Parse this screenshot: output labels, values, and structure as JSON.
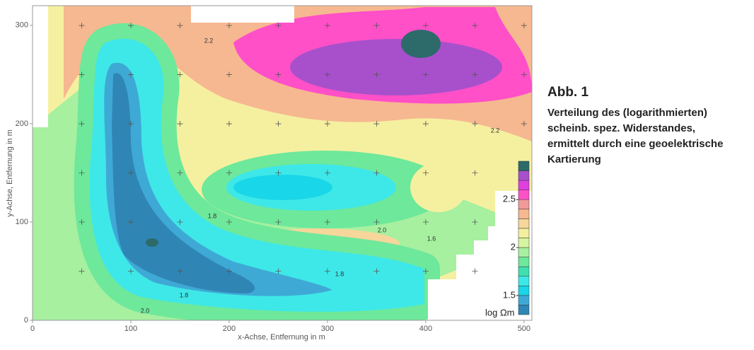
{
  "chart_data": {
    "type": "contour",
    "xlabel": "x-Achse, Entfernung in m",
    "ylabel": "y-Achse, Entfernung in m",
    "xlim": [
      0,
      508
    ],
    "ylim": [
      0,
      320
    ],
    "xticks": [
      0,
      100,
      200,
      300,
      400,
      500
    ],
    "yticks": [
      0,
      100,
      200,
      300
    ],
    "colorbar": {
      "label": "log Ωm",
      "levels": [
        1.3,
        1.4,
        1.5,
        1.6,
        1.7,
        1.8,
        1.9,
        2.0,
        2.1,
        2.2,
        2.3,
        2.4,
        2.5,
        2.6,
        2.7,
        2.8,
        2.9
      ],
      "colors": [
        "#2f86b5",
        "#3fa9d6",
        "#19d6e8",
        "#3ee8e8",
        "#40e0b0",
        "#6ee89a",
        "#a6f0a0",
        "#d6f5a0",
        "#f5f0a0",
        "#f6d69a",
        "#f6b890",
        "#f29a9a",
        "#ff50c8",
        "#e040e0",
        "#a850cc",
        "#2d6a6a"
      ],
      "ticks": [
        1.5,
        2.0,
        2.5
      ]
    },
    "contour_labels": [
      "2.0",
      "1.8",
      "1.6",
      "2.2",
      "1.8",
      "2.0",
      "1.8",
      "2.2"
    ],
    "figure_label": "Abb. 1",
    "caption_lines": [
      "Verteilung des (logarithmierten)",
      "scheinb. spez. Widerstandes,",
      "ermittelt durch eine geoelektrische",
      "Kartierung"
    ]
  }
}
